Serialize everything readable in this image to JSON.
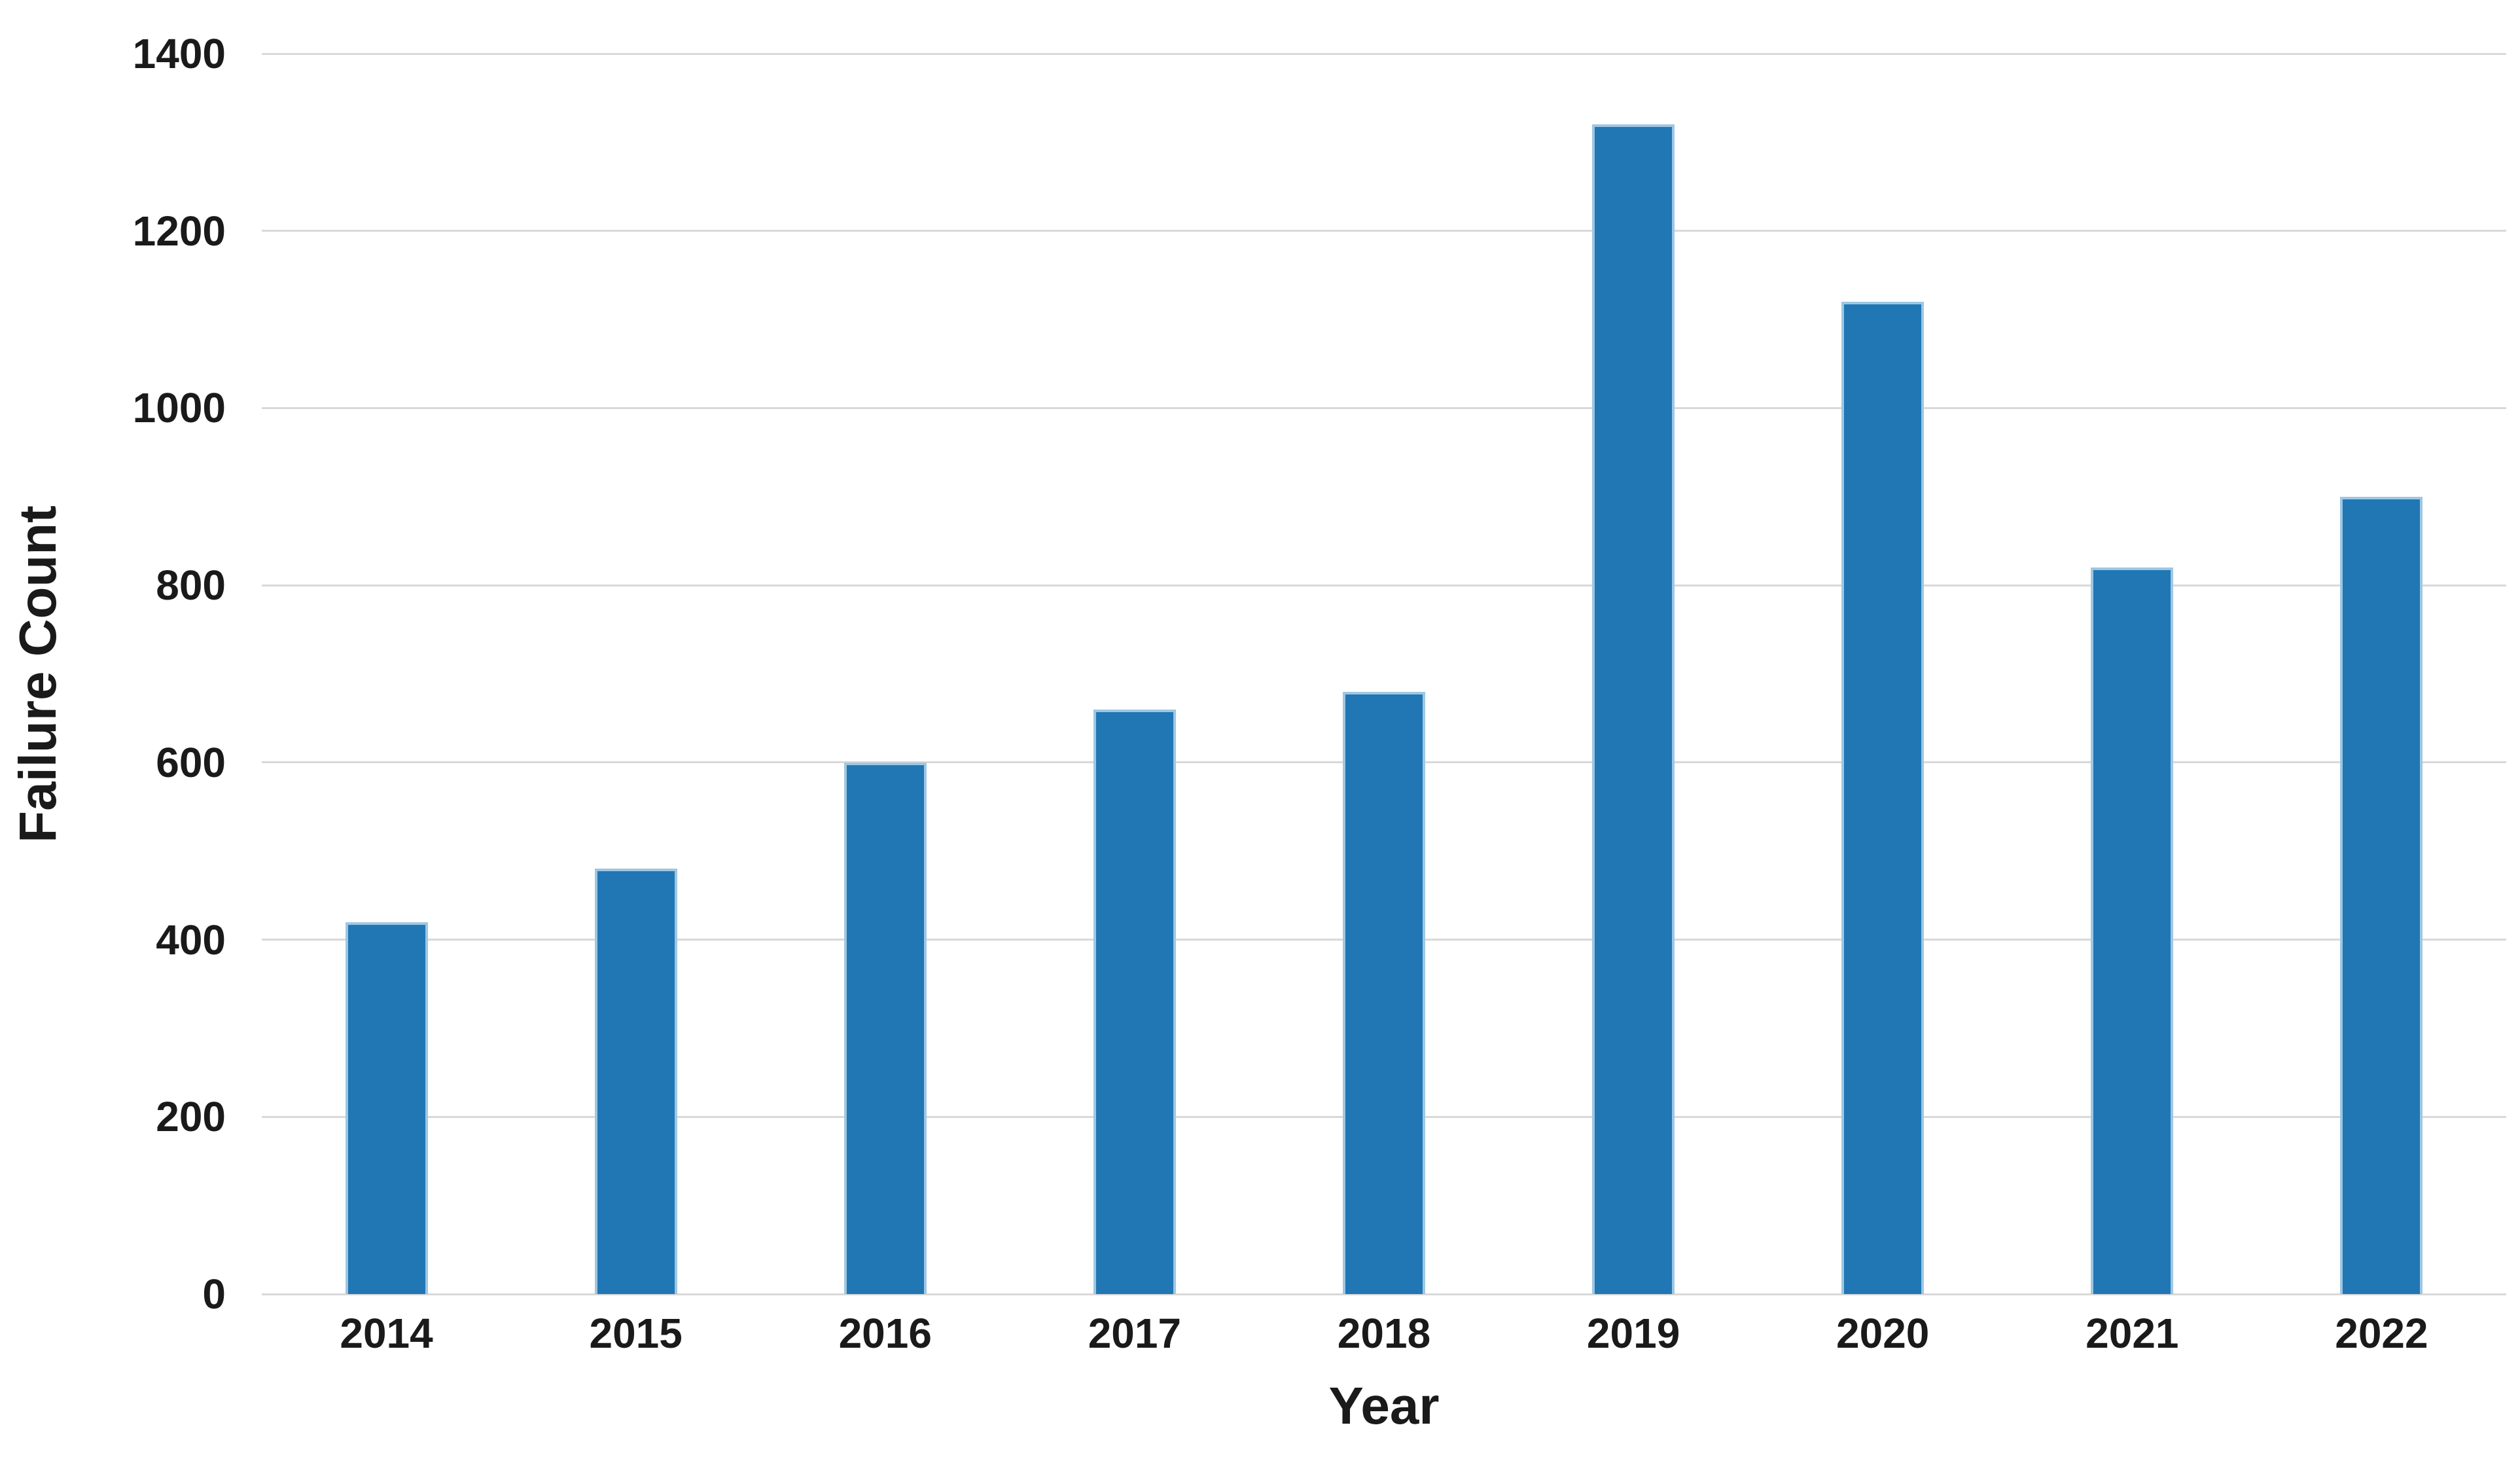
{
  "chart_data": {
    "type": "bar",
    "title": "",
    "categories": [
      "2014",
      "2015",
      "2016",
      "2017",
      "2018",
      "2019",
      "2020",
      "2021",
      "2022"
    ],
    "values": [
      420,
      480,
      600,
      660,
      680,
      1320,
      1120,
      820,
      900
    ],
    "xlabel": "Year",
    "ylabel": "Failure Count",
    "ylim": [
      0,
      1400
    ],
    "y_ticks": [
      0,
      200,
      400,
      600,
      800,
      1000,
      1200,
      1400
    ],
    "grid": "horizontal-only",
    "legend_position": "none",
    "colors": {
      "bar_fill": "#2176b4",
      "bar_edge": "#9ec7e2",
      "gridline": "#d9d9d9",
      "tick_label": "#1a1a1a",
      "axis_title": "#1a1a1a",
      "background": "#ffffff"
    }
  }
}
